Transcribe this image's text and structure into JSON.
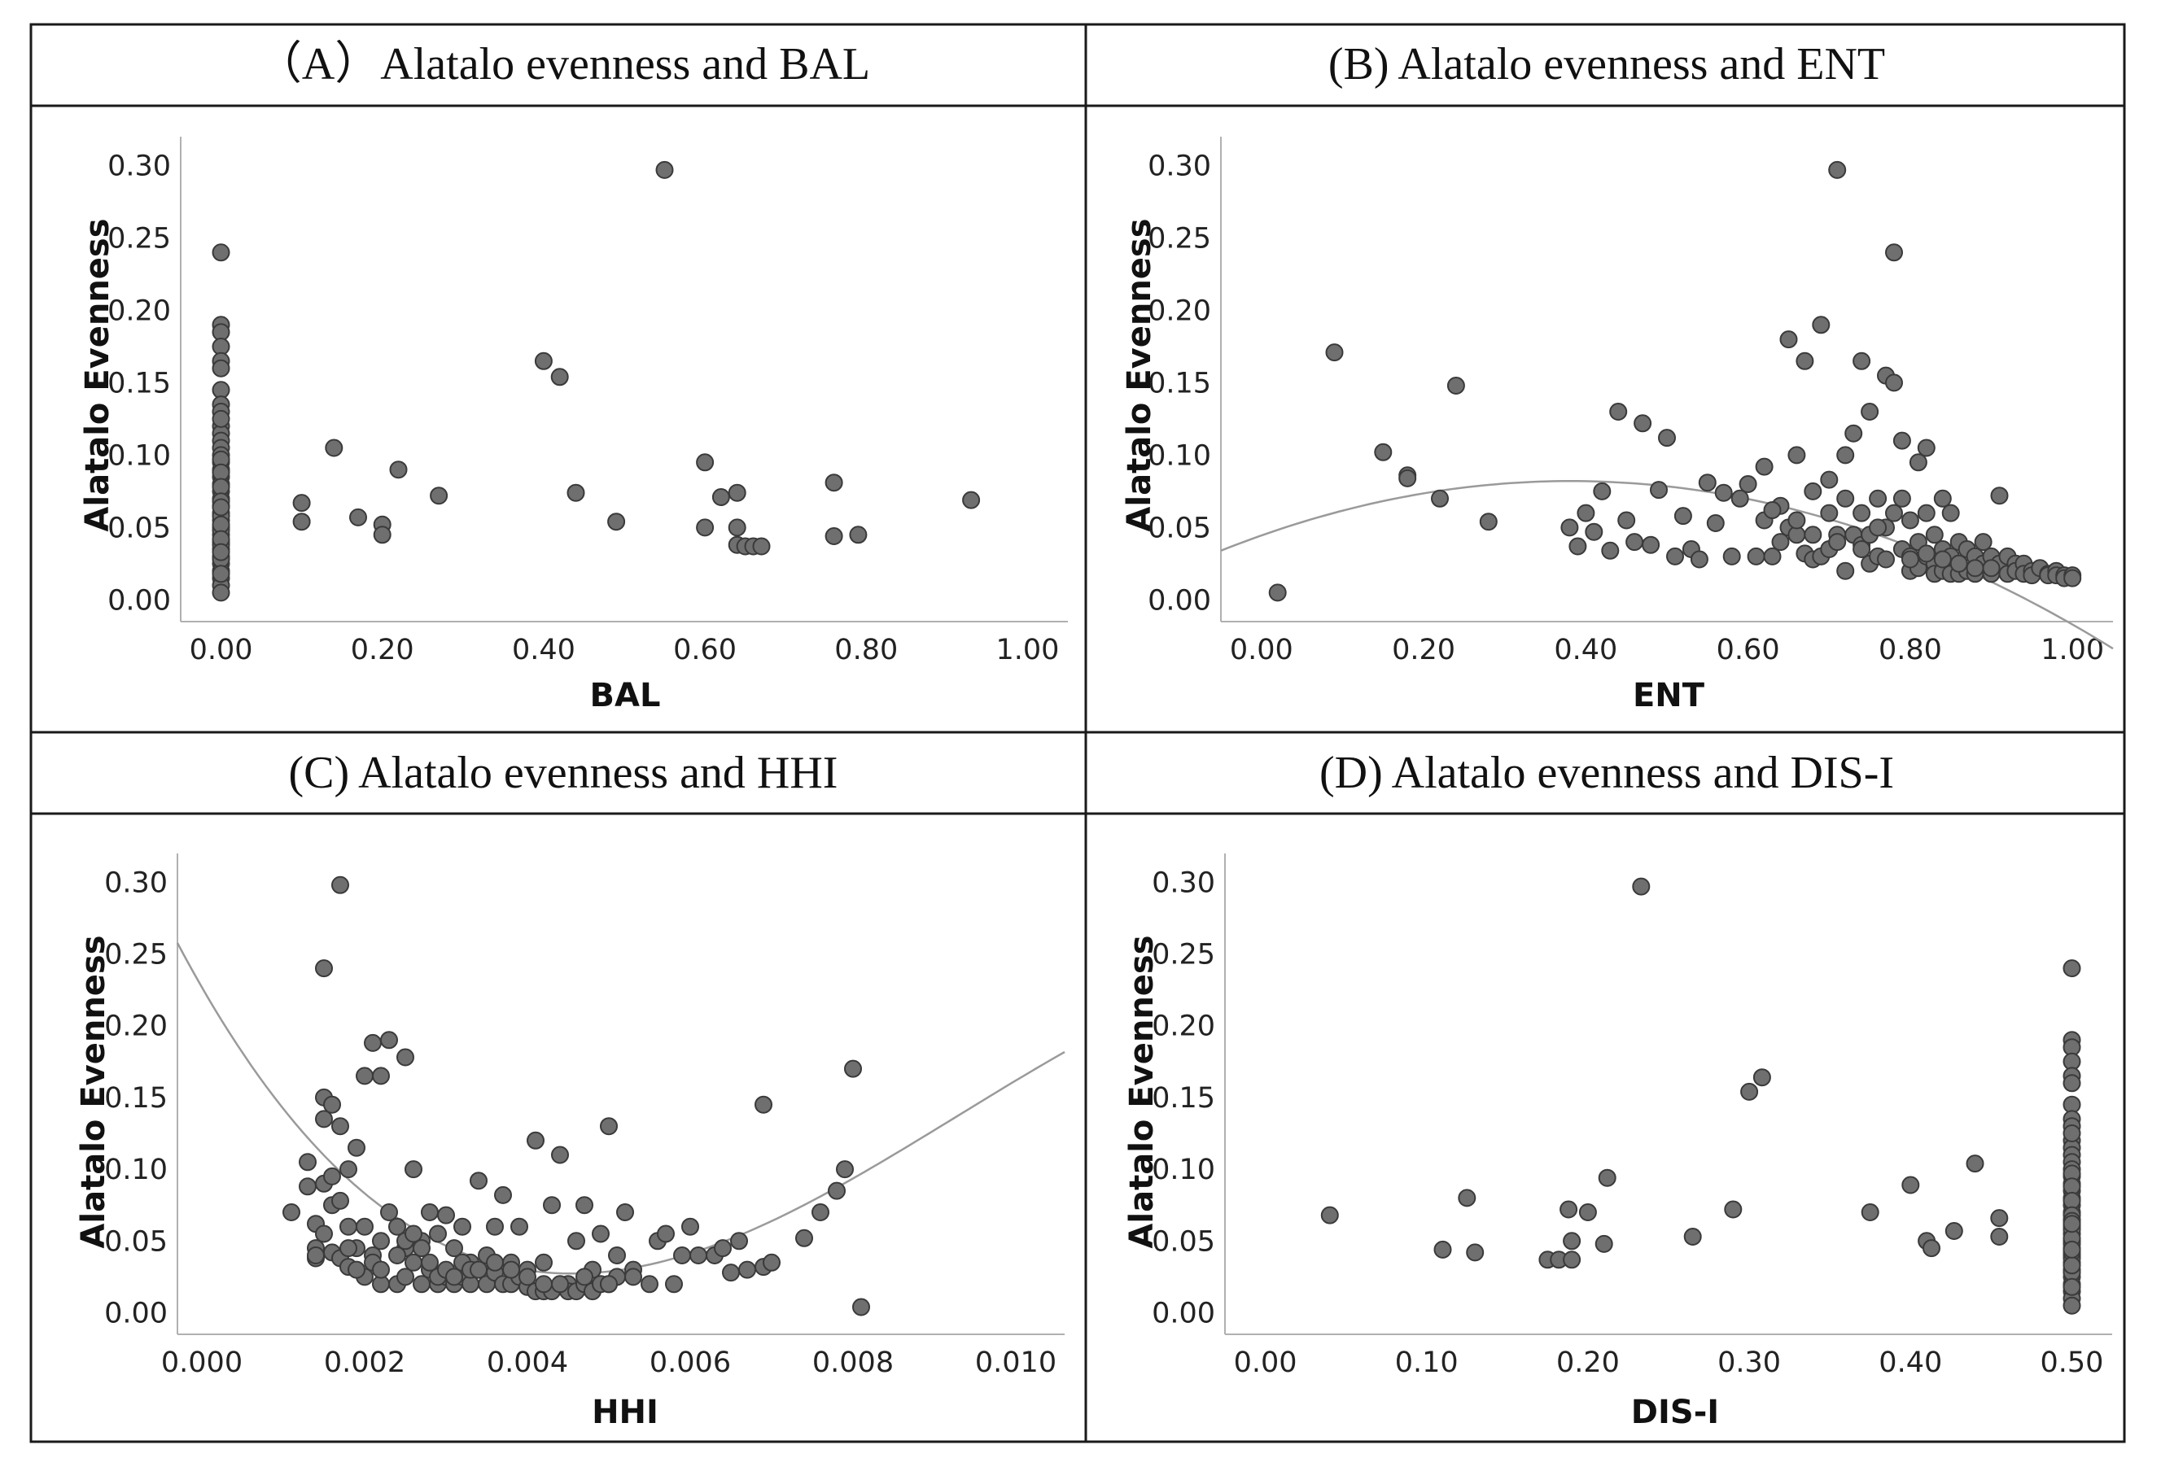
{
  "figure": {
    "colors": {
      "border": "#1a1a1a",
      "axis": "#b0b0b0",
      "point_fill": "#6f6f6f",
      "point_stroke": "#3a3a3a",
      "fit_line": "#9a9a9a"
    }
  },
  "chart_data": [
    {
      "type": "scatter",
      "title": "（A）Alatalo evenness and BAL",
      "xlabel": "BAL",
      "ylabel": "Alatalo Evenness",
      "xlim": [
        -0.05,
        1.05
      ],
      "ylim": [
        -0.015,
        0.32
      ],
      "xticks": [
        0.0,
        0.2,
        0.4,
        0.6,
        0.8,
        1.0
      ],
      "xtick_labels": [
        "0.00",
        "0.20",
        "0.40",
        "0.60",
        "0.80",
        "1.00"
      ],
      "yticks": [
        0.0,
        0.05,
        0.1,
        0.15,
        0.2,
        0.25,
        0.3
      ],
      "ytick_labels": [
        "0.00",
        "0.05",
        "0.10",
        "0.15",
        "0.20",
        "0.25",
        "0.30"
      ],
      "x": [
        0.0,
        0.0,
        0.0,
        0.0,
        0.0,
        0.0,
        0.0,
        0.0,
        0.0,
        0.0,
        0.0,
        0.0,
        0.0,
        0.0,
        0.0,
        0.0,
        0.0,
        0.0,
        0.0,
        0.0,
        0.0,
        0.0,
        0.0,
        0.0,
        0.0,
        0.0,
        0.0,
        0.0,
        0.0,
        0.0,
        0.0,
        0.0,
        0.0,
        0.0,
        0.0,
        0.0,
        0.0,
        0.0,
        0.0,
        0.0,
        0.0,
        0.0,
        0.0,
        0.0,
        0.0,
        0.0,
        0.0,
        0.1,
        0.1,
        0.14,
        0.17,
        0.2,
        0.2,
        0.22,
        0.27,
        0.4,
        0.42,
        0.44,
        0.49,
        0.55,
        0.6,
        0.6,
        0.62,
        0.64,
        0.64,
        0.64,
        0.65,
        0.66,
        0.67,
        0.76,
        0.76,
        0.79,
        0.93
      ],
      "y": [
        0.24,
        0.19,
        0.185,
        0.175,
        0.165,
        0.16,
        0.145,
        0.135,
        0.13,
        0.12,
        0.115,
        0.11,
        0.105,
        0.1,
        0.095,
        0.09,
        0.085,
        0.08,
        0.075,
        0.07,
        0.065,
        0.06,
        0.055,
        0.05,
        0.045,
        0.04,
        0.035,
        0.03,
        0.025,
        0.02,
        0.015,
        0.01,
        0.005,
        0.125,
        0.097,
        0.088,
        0.078,
        0.068,
        0.058,
        0.048,
        0.038,
        0.028,
        0.018,
        0.064,
        0.052,
        0.042,
        0.033,
        0.067,
        0.054,
        0.105,
        0.057,
        0.052,
        0.045,
        0.09,
        0.072,
        0.165,
        0.154,
        0.074,
        0.054,
        0.297,
        0.095,
        0.05,
        0.071,
        0.074,
        0.05,
        0.038,
        0.037,
        0.037,
        0.037,
        0.081,
        0.044,
        0.045,
        0.069
      ],
      "fit_curve": null
    },
    {
      "type": "scatter",
      "title": "(B) Alatalo evenness and ENT",
      "xlabel": "ENT",
      "ylabel": "Alatalo Evenness",
      "xlim": [
        -0.05,
        1.05
      ],
      "ylim": [
        -0.015,
        0.32
      ],
      "xticks": [
        0.0,
        0.2,
        0.4,
        0.6,
        0.8,
        1.0
      ],
      "xtick_labels": [
        "0.00",
        "0.20",
        "0.40",
        "0.60",
        "0.80",
        "1.00"
      ],
      "yticks": [
        0.0,
        0.05,
        0.1,
        0.15,
        0.2,
        0.25,
        0.3
      ],
      "ytick_labels": [
        "0.00",
        "0.05",
        "0.10",
        "0.15",
        "0.20",
        "0.25",
        "0.30"
      ],
      "x": [
        0.02,
        0.09,
        0.15,
        0.18,
        0.18,
        0.22,
        0.24,
        0.28,
        0.38,
        0.39,
        0.4,
        0.41,
        0.42,
        0.43,
        0.44,
        0.45,
        0.46,
        0.47,
        0.48,
        0.49,
        0.5,
        0.51,
        0.52,
        0.53,
        0.54,
        0.55,
        0.56,
        0.57,
        0.58,
        0.6,
        0.61,
        0.62,
        0.62,
        0.63,
        0.64,
        0.64,
        0.65,
        0.65,
        0.66,
        0.66,
        0.67,
        0.67,
        0.68,
        0.68,
        0.69,
        0.69,
        0.7,
        0.7,
        0.7,
        0.71,
        0.71,
        0.72,
        0.72,
        0.72,
        0.73,
        0.73,
        0.74,
        0.74,
        0.74,
        0.75,
        0.75,
        0.75,
        0.76,
        0.76,
        0.77,
        0.77,
        0.77,
        0.78,
        0.78,
        0.78,
        0.79,
        0.79,
        0.79,
        0.8,
        0.8,
        0.8,
        0.81,
        0.81,
        0.81,
        0.82,
        0.82,
        0.82,
        0.83,
        0.83,
        0.83,
        0.84,
        0.84,
        0.84,
        0.85,
        0.85,
        0.85,
        0.86,
        0.86,
        0.86,
        0.87,
        0.87,
        0.88,
        0.88,
        0.89,
        0.89,
        0.9,
        0.9,
        0.91,
        0.91,
        0.92,
        0.92,
        0.93,
        0.93,
        0.94,
        0.94,
        0.95,
        0.95,
        0.96,
        0.97,
        0.97,
        0.98,
        0.98,
        0.99,
        0.99,
        1.0,
        1.0,
        0.59,
        0.63,
        0.66,
        0.68,
        0.71,
        0.74,
        0.76,
        0.8,
        0.82,
        0.84,
        0.86,
        0.88,
        0.9
      ],
      "y": [
        0.005,
        0.171,
        0.102,
        0.086,
        0.084,
        0.07,
        0.148,
        0.054,
        0.05,
        0.037,
        0.06,
        0.047,
        0.075,
        0.034,
        0.13,
        0.055,
        0.04,
        0.122,
        0.038,
        0.076,
        0.112,
        0.03,
        0.058,
        0.035,
        0.028,
        0.081,
        0.053,
        0.074,
        0.03,
        0.08,
        0.03,
        0.055,
        0.092,
        0.03,
        0.04,
        0.065,
        0.18,
        0.05,
        0.1,
        0.045,
        0.165,
        0.032,
        0.075,
        0.028,
        0.19,
        0.03,
        0.06,
        0.083,
        0.035,
        0.297,
        0.045,
        0.1,
        0.07,
        0.02,
        0.045,
        0.115,
        0.038,
        0.06,
        0.165,
        0.045,
        0.13,
        0.025,
        0.07,
        0.03,
        0.155,
        0.05,
        0.028,
        0.24,
        0.15,
        0.06,
        0.035,
        0.11,
        0.07,
        0.055,
        0.03,
        0.02,
        0.095,
        0.04,
        0.022,
        0.06,
        0.105,
        0.03,
        0.045,
        0.025,
        0.018,
        0.07,
        0.035,
        0.02,
        0.06,
        0.03,
        0.018,
        0.04,
        0.025,
        0.018,
        0.035,
        0.02,
        0.03,
        0.018,
        0.04,
        0.025,
        0.03,
        0.018,
        0.072,
        0.025,
        0.03,
        0.018,
        0.025,
        0.02,
        0.025,
        0.018,
        0.02,
        0.017,
        0.022,
        0.018,
        0.017,
        0.02,
        0.017,
        0.017,
        0.015,
        0.017,
        0.015,
        0.07,
        0.062,
        0.055,
        0.045,
        0.04,
        0.035,
        0.05,
        0.028,
        0.032,
        0.028,
        0.025,
        0.022,
        0.022
      ],
      "fit_curve": {
        "kind": "polynomial",
        "coef": [
          0.0445,
          0.1972,
          -0.2587
        ],
        "x_range": [
          -0.05,
          1.05
        ]
      }
    },
    {
      "type": "scatter",
      "title": "(C) Alatalo evenness and HHI",
      "xlabel": "HHI",
      "ylabel": "Alatalo Evenness",
      "xlim": [
        -0.0003,
        0.0106
      ],
      "ylim": [
        -0.015,
        0.32
      ],
      "xticks": [
        0.0,
        0.002,
        0.004,
        0.006,
        0.008,
        0.01
      ],
      "xtick_labels": [
        "0.000",
        "0.002",
        "0.004",
        "0.006",
        "0.008",
        "0.010"
      ],
      "yticks": [
        0.0,
        0.05,
        0.1,
        0.15,
        0.2,
        0.25,
        0.3
      ],
      "ytick_labels": [
        "0.00",
        "0.05",
        "0.10",
        "0.15",
        "0.20",
        "0.25",
        "0.30"
      ],
      "x": [
        0.0011,
        0.0013,
        0.0013,
        0.0014,
        0.0014,
        0.0014,
        0.0015,
        0.0015,
        0.0015,
        0.0016,
        0.0016,
        0.0016,
        0.0017,
        0.0017,
        0.0017,
        0.0018,
        0.0018,
        0.0018,
        0.0019,
        0.0019,
        0.002,
        0.002,
        0.002,
        0.0021,
        0.0021,
        0.0022,
        0.0022,
        0.0022,
        0.0023,
        0.0023,
        0.0024,
        0.0024,
        0.0025,
        0.0025,
        0.0025,
        0.0026,
        0.0026,
        0.0027,
        0.0027,
        0.0028,
        0.0028,
        0.0029,
        0.0029,
        0.003,
        0.003,
        0.0031,
        0.0031,
        0.0032,
        0.0032,
        0.0033,
        0.0033,
        0.0034,
        0.0034,
        0.0035,
        0.0035,
        0.0036,
        0.0036,
        0.0037,
        0.0037,
        0.0038,
        0.0038,
        0.0039,
        0.0039,
        0.004,
        0.004,
        0.0041,
        0.0041,
        0.0042,
        0.0042,
        0.0043,
        0.0043,
        0.0044,
        0.0045,
        0.0045,
        0.0046,
        0.0046,
        0.0047,
        0.0047,
        0.0048,
        0.0048,
        0.0049,
        0.0049,
        0.005,
        0.005,
        0.0051,
        0.0051,
        0.0052,
        0.0053,
        0.0055,
        0.0056,
        0.0057,
        0.0058,
        0.0059,
        0.006,
        0.0061,
        0.0063,
        0.0064,
        0.0065,
        0.0066,
        0.0067,
        0.0069,
        0.0069,
        0.007,
        0.0074,
        0.0076,
        0.0078,
        0.0079,
        0.008,
        0.0081,
        0.0014,
        0.0017,
        0.0015,
        0.0015,
        0.0016,
        0.0018,
        0.0019,
        0.0021,
        0.0022,
        0.0024,
        0.0025,
        0.0026,
        0.0027,
        0.0028,
        0.0029,
        0.003,
        0.0031,
        0.0032,
        0.0033,
        0.0034,
        0.0036,
        0.0038,
        0.004,
        0.0042,
        0.0044,
        0.0047,
        0.005,
        0.0053
      ],
      "y": [
        0.07,
        0.105,
        0.088,
        0.062,
        0.045,
        0.038,
        0.15,
        0.09,
        0.055,
        0.095,
        0.075,
        0.042,
        0.13,
        0.078,
        0.038,
        0.1,
        0.06,
        0.032,
        0.115,
        0.045,
        0.165,
        0.06,
        0.025,
        0.188,
        0.04,
        0.165,
        0.05,
        0.02,
        0.19,
        0.07,
        0.06,
        0.02,
        0.178,
        0.045,
        0.025,
        0.1,
        0.035,
        0.05,
        0.02,
        0.07,
        0.03,
        0.055,
        0.02,
        0.068,
        0.025,
        0.045,
        0.02,
        0.06,
        0.025,
        0.035,
        0.02,
        0.092,
        0.03,
        0.04,
        0.02,
        0.06,
        0.028,
        0.082,
        0.02,
        0.035,
        0.02,
        0.06,
        0.025,
        0.03,
        0.018,
        0.12,
        0.015,
        0.035,
        0.015,
        0.075,
        0.015,
        0.11,
        0.02,
        0.015,
        0.05,
        0.015,
        0.075,
        0.02,
        0.03,
        0.015,
        0.055,
        0.02,
        0.13,
        0.02,
        0.04,
        0.025,
        0.07,
        0.03,
        0.02,
        0.05,
        0.055,
        0.02,
        0.04,
        0.06,
        0.04,
        0.04,
        0.045,
        0.028,
        0.05,
        0.03,
        0.145,
        0.032,
        0.035,
        0.052,
        0.07,
        0.085,
        0.1,
        0.17,
        0.004,
        0.04,
        0.298,
        0.24,
        0.135,
        0.145,
        0.045,
        0.03,
        0.035,
        0.03,
        0.04,
        0.05,
        0.055,
        0.045,
        0.035,
        0.025,
        0.03,
        0.025,
        0.035,
        0.03,
        0.03,
        0.035,
        0.03,
        0.025,
        0.02,
        0.02,
        0.025,
        0.02,
        0.025
      ],
      "fit_curve": {
        "kind": "polynomial",
        "coef": [
          0.2268,
          -98.43,
          14340,
          -514700
        ],
        "x_range": [
          -0.0003,
          0.0106
        ]
      }
    },
    {
      "type": "scatter",
      "title": "(D) Alatalo evenness and DIS-I",
      "xlabel": "DIS-I",
      "ylabel": "Alatalo Evenness",
      "xlim": [
        -0.025,
        0.525
      ],
      "ylim": [
        -0.015,
        0.32
      ],
      "xticks": [
        0.0,
        0.1,
        0.2,
        0.3,
        0.4,
        0.5
      ],
      "xtick_labels": [
        "0.00",
        "0.10",
        "0.20",
        "0.30",
        "0.40",
        "0.50"
      ],
      "yticks": [
        0.0,
        0.05,
        0.1,
        0.15,
        0.2,
        0.25,
        0.3
      ],
      "ytick_labels": [
        "0.00",
        "0.05",
        "0.10",
        "0.15",
        "0.20",
        "0.25",
        "0.30"
      ],
      "x": [
        0.04,
        0.11,
        0.125,
        0.13,
        0.175,
        0.182,
        0.188,
        0.19,
        0.19,
        0.2,
        0.21,
        0.212,
        0.233,
        0.265,
        0.29,
        0.3,
        0.308,
        0.375,
        0.4,
        0.41,
        0.413,
        0.427,
        0.44,
        0.455,
        0.455,
        0.5,
        0.5,
        0.5,
        0.5,
        0.5,
        0.5,
        0.5,
        0.5,
        0.5,
        0.5,
        0.5,
        0.5,
        0.5,
        0.5,
        0.5,
        0.5,
        0.5,
        0.5,
        0.5,
        0.5,
        0.5,
        0.5,
        0.5,
        0.5,
        0.5,
        0.5,
        0.5,
        0.5,
        0.5,
        0.5,
        0.5,
        0.5,
        0.5,
        0.5,
        0.5,
        0.5,
        0.5,
        0.5,
        0.5,
        0.5,
        0.5,
        0.5,
        0.5,
        0.5,
        0.5,
        0.5,
        0.5,
        0.5,
        0.5
      ],
      "y": [
        0.068,
        0.044,
        0.08,
        0.042,
        0.037,
        0.037,
        0.072,
        0.037,
        0.05,
        0.07,
        0.048,
        0.094,
        0.297,
        0.053,
        0.072,
        0.154,
        0.164,
        0.07,
        0.089,
        0.05,
        0.045,
        0.057,
        0.104,
        0.066,
        0.053,
        0.24,
        0.19,
        0.185,
        0.175,
        0.165,
        0.16,
        0.145,
        0.135,
        0.13,
        0.12,
        0.115,
        0.11,
        0.105,
        0.1,
        0.095,
        0.09,
        0.085,
        0.08,
        0.075,
        0.07,
        0.065,
        0.06,
        0.055,
        0.05,
        0.045,
        0.04,
        0.035,
        0.03,
        0.025,
        0.02,
        0.015,
        0.01,
        0.005,
        0.125,
        0.097,
        0.088,
        0.078,
        0.068,
        0.058,
        0.048,
        0.038,
        0.028,
        0.018,
        0.064,
        0.052,
        0.042,
        0.033,
        0.062,
        0.044
      ],
      "fit_curve": null
    }
  ]
}
